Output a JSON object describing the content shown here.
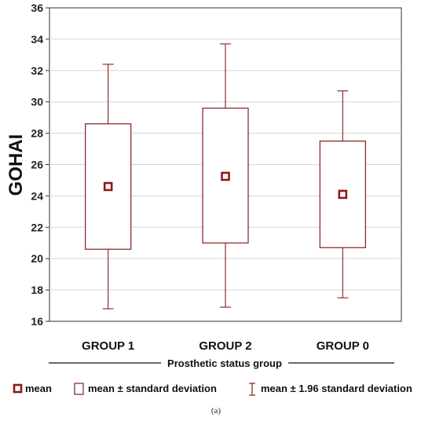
{
  "chart_data": {
    "type": "box",
    "ylabel": "GOHAI",
    "xlabel": "Prosthetic status group",
    "ylim": [
      16,
      36
    ],
    "yticks": [
      "16",
      "18",
      "20",
      "22",
      "24",
      "26",
      "28",
      "30",
      "32",
      "34",
      "36"
    ],
    "grid": true,
    "categories": [
      "GROUP 1",
      "GROUP 2",
      "GROUP 0"
    ],
    "series": [
      {
        "mean": 24.6,
        "box_low": 20.6,
        "box_high": 28.6,
        "whisker_low": 16.8,
        "whisker_high": 32.4
      },
      {
        "mean": 25.25,
        "box_low": 21.0,
        "box_high": 29.6,
        "whisker_low": 16.9,
        "whisker_high": 33.7
      },
      {
        "mean": 24.1,
        "box_low": 20.7,
        "box_high": 27.5,
        "whisker_low": 17.5,
        "whisker_high": 30.7
      }
    ],
    "legend": [
      "mean",
      "mean ± standard deviation",
      "mean ± 1.96 standard deviation"
    ],
    "color": "#8b1a1a"
  },
  "caption": "(a)"
}
